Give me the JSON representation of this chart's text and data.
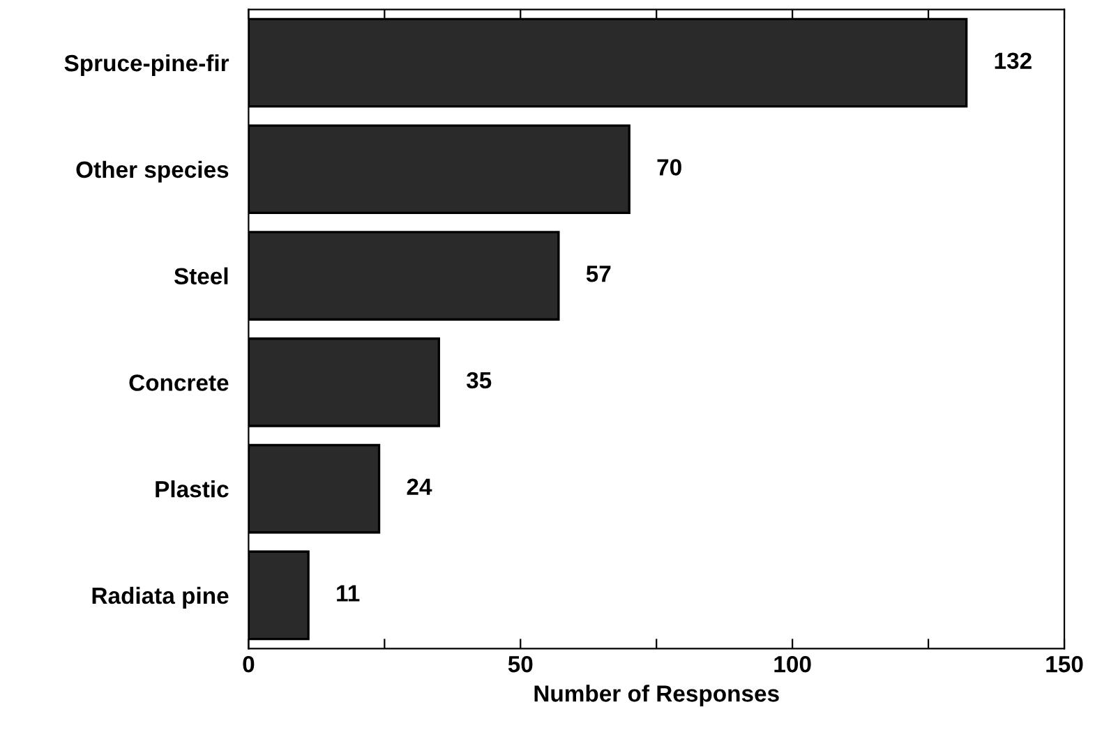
{
  "chart_data": {
    "type": "bar",
    "orientation": "horizontal",
    "xlabel": "Number of Responses",
    "categories": [
      "Spruce-pine-fir",
      "Other species",
      "Steel",
      "Concrete",
      "Plastic",
      "Radiata pine"
    ],
    "values": [
      132,
      70,
      57,
      35,
      24,
      11
    ],
    "color": "#2a2a2a",
    "xlim": [
      0,
      150
    ],
    "xticks": [
      0,
      {
        "value": 25,
        "label": null
      },
      50,
      {
        "value": 75,
        "label": null
      },
      100,
      {
        "value": 125,
        "label": null
      },
      150
    ],
    "data_labels": true,
    "grid": false,
    "legend": false
  }
}
